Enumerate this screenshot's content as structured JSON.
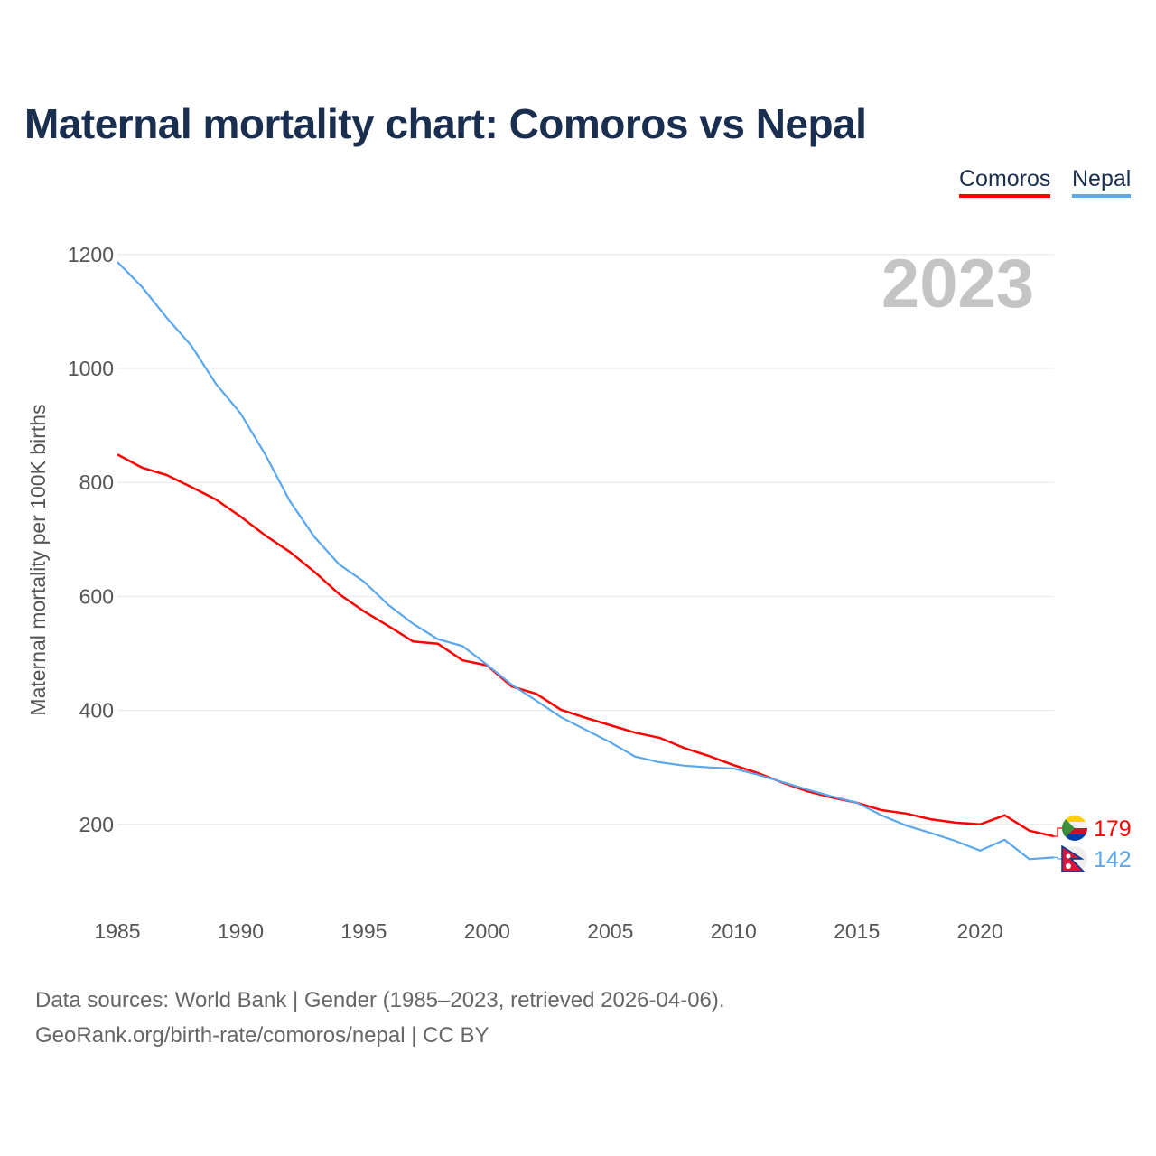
{
  "chart_data": {
    "type": "line",
    "title": "Maternal mortality chart: Comoros vs Nepal",
    "ylabel": "Maternal mortality per 100K births",
    "xlabel": "",
    "year_watermark": "2023",
    "ylim": [
      0,
      1200
    ],
    "yticks": [
      200,
      400,
      600,
      800,
      1000,
      1200
    ],
    "xticks": [
      1985,
      1990,
      1995,
      2000,
      2005,
      2010,
      2015,
      2020
    ],
    "x": [
      1985,
      1986,
      1987,
      1988,
      1989,
      1990,
      1991,
      1992,
      1993,
      1994,
      1995,
      1996,
      1997,
      1998,
      1999,
      2000,
      2001,
      2002,
      2003,
      2004,
      2005,
      2006,
      2007,
      2008,
      2009,
      2010,
      2011,
      2012,
      2013,
      2014,
      2015,
      2016,
      2017,
      2018,
      2019,
      2020,
      2021,
      2022,
      2023
    ],
    "grid": true,
    "legend_position": "top-right",
    "series": [
      {
        "name": "Comoros",
        "color": "#ff0000",
        "end_label": "179",
        "values": [
          849,
          826,
          813,
          792,
          770,
          740,
          707,
          678,
          643,
          604,
          574,
          548,
          521,
          517,
          488,
          479,
          442,
          429,
          401,
          387,
          374,
          361,
          352,
          334,
          320,
          304,
          290,
          273,
          258,
          247,
          238,
          225,
          219,
          209,
          203,
          200,
          216,
          189,
          179
        ]
      },
      {
        "name": "Nepal",
        "color": "#5aa7ee",
        "end_label": "142",
        "values": [
          1187,
          1143,
          1089,
          1040,
          973,
          921,
          849,
          767,
          704,
          656,
          626,
          585,
          552,
          525,
          513,
          480,
          445,
          417,
          388,
          366,
          344,
          319,
          309,
          303,
          300,
          298,
          287,
          274,
          261,
          249,
          238,
          216,
          198,
          185,
          171,
          154,
          173,
          139,
          142
        ]
      }
    ]
  },
  "footer": {
    "line1": "Data sources: World Bank | Gender (1985–2023, retrieved 2026-04-06).",
    "line2": "GeoRank.org/birth-rate/comoros/nepal | CC BY"
  }
}
